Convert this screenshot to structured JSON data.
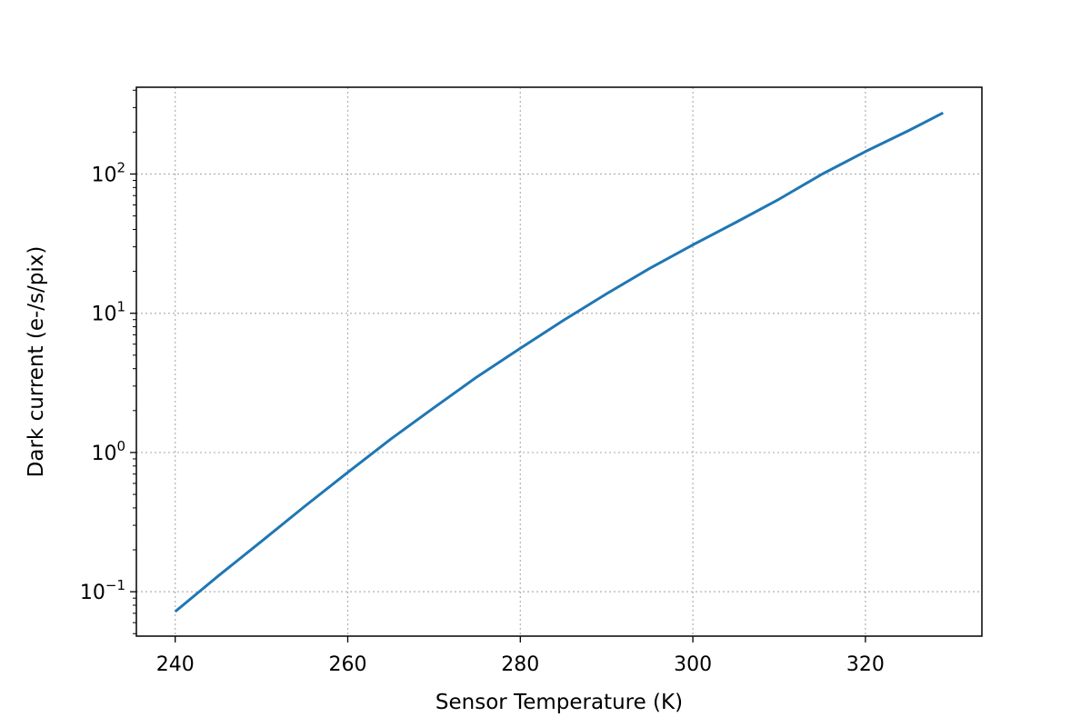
{
  "chart_data": {
    "type": "line",
    "title": "",
    "xlabel": "Sensor Temperature (K)",
    "ylabel": "Dark current (e-/s/pix)",
    "xlim": [
      235.5,
      333.5
    ],
    "ylim": [
      0.048,
      420
    ],
    "yscale": "log",
    "grid": true,
    "x_ticks": [
      240,
      260,
      280,
      300,
      320
    ],
    "y_ticks": [
      {
        "value": 0.1,
        "base": "10",
        "exp": "−1"
      },
      {
        "value": 1,
        "base": "10",
        "exp": "0"
      },
      {
        "value": 10,
        "base": "10",
        "exp": "1"
      },
      {
        "value": 100,
        "base": "10",
        "exp": "2"
      }
    ],
    "series": [
      {
        "color": "#1f77b4",
        "x": [
          240,
          245,
          250,
          255,
          260,
          265,
          270,
          275,
          280,
          285,
          290,
          295,
          300,
          305,
          310,
          315,
          320,
          325,
          329
        ],
        "y": [
          0.072,
          0.13,
          0.23,
          0.41,
          0.72,
          1.25,
          2.1,
          3.5,
          5.6,
          8.9,
          13.8,
          21.0,
          31.0,
          45.0,
          66.0,
          100.0,
          145.0,
          205.0,
          275.0
        ]
      }
    ]
  }
}
